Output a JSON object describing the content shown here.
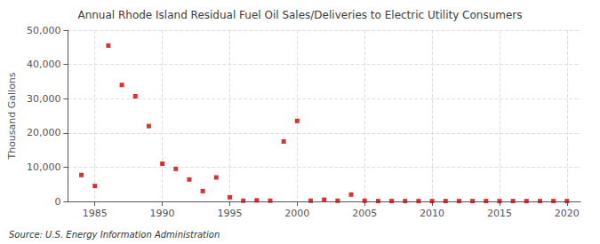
{
  "chart_data": {
    "type": "scatter",
    "title": "Annual Rhode Island Residual Fuel Oil Sales/Deliveries to Electric Utility Consumers",
    "ylabel": "Thousand Gallons",
    "source": "Source: U.S. Energy Information Administration",
    "color": "#cc0000",
    "marker": "square",
    "grid": true,
    "xlim": [
      1983,
      2021
    ],
    "xticks": [
      1985,
      1990,
      1995,
      2000,
      2005,
      2010,
      2015,
      2020
    ],
    "ylim": [
      0,
      50000
    ],
    "yticks": [
      0,
      {
        "value": 10000,
        "label": "10,000"
      },
      {
        "value": 20000,
        "label": "20,000"
      },
      {
        "value": 30000,
        "label": "30,000"
      },
      {
        "value": 40000,
        "label": "40,000"
      },
      {
        "value": 50000,
        "label": "50,000"
      }
    ],
    "x": [
      1984,
      1985,
      1986,
      1987,
      1988,
      1989,
      1990,
      1991,
      1992,
      1993,
      1994,
      1995,
      1996,
      1997,
      1998,
      1999,
      2000,
      2001,
      2002,
      2003,
      2004,
      2005,
      2006,
      2007,
      2008,
      2009,
      2010,
      2011,
      2012,
      2013,
      2014,
      2015,
      2016,
      2017,
      2018,
      2019,
      2020
    ],
    "values": [
      7700,
      4500,
      45500,
      34000,
      30700,
      22000,
      11000,
      9500,
      6400,
      3000,
      7000,
      1200,
      200,
      300,
      200,
      17500,
      23500,
      200,
      500,
      200,
      2000,
      200,
      100,
      100,
      100,
      100,
      100,
      100,
      100,
      100,
      100,
      100,
      100,
      100,
      100,
      100,
      100
    ]
  }
}
